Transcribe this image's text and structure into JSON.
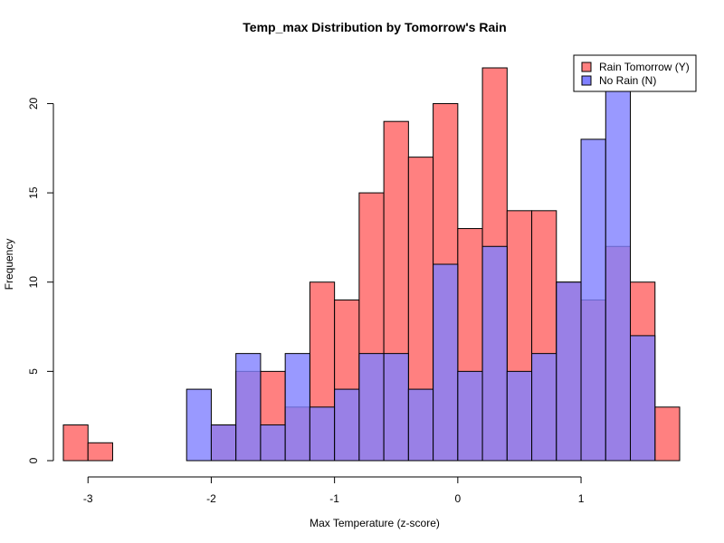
{
  "chart_data": {
    "type": "bar",
    "title": "Temp_max Distribution by Tomorrow's Rain",
    "xlabel": "Max Temperature (z-score)",
    "ylabel": "Frequency",
    "xlim": [
      -3.2,
      1.8
    ],
    "ylim": [
      0,
      22
    ],
    "xticks": [
      -3,
      -2,
      -1,
      0,
      1
    ],
    "yticks": [
      0,
      5,
      10,
      15,
      20
    ],
    "bin_width": 0.2,
    "legend_position": "top-right",
    "grid": false,
    "series": [
      {
        "name": "Rain Tomorrow (Y)",
        "color": "#FF8080",
        "bins": [
          {
            "x0": -3.2,
            "x1": -3.0,
            "count": 2
          },
          {
            "x0": -3.0,
            "x1": -2.8,
            "count": 1
          },
          {
            "x0": -2.0,
            "x1": -1.8,
            "count": 2
          },
          {
            "x0": -1.8,
            "x1": -1.6,
            "count": 5
          },
          {
            "x0": -1.6,
            "x1": -1.4,
            "count": 5
          },
          {
            "x0": -1.4,
            "x1": -1.2,
            "count": 3
          },
          {
            "x0": -1.2,
            "x1": -1.0,
            "count": 10
          },
          {
            "x0": -1.0,
            "x1": -0.8,
            "count": 9
          },
          {
            "x0": -0.8,
            "x1": -0.6,
            "count": 15
          },
          {
            "x0": -0.6,
            "x1": -0.4,
            "count": 19
          },
          {
            "x0": -0.4,
            "x1": -0.2,
            "count": 17
          },
          {
            "x0": -0.2,
            "x1": 0.0,
            "count": 20
          },
          {
            "x0": 0.0,
            "x1": 0.2,
            "count": 13
          },
          {
            "x0": 0.2,
            "x1": 0.4,
            "count": 22
          },
          {
            "x0": 0.4,
            "x1": 0.6,
            "count": 14
          },
          {
            "x0": 0.6,
            "x1": 0.8,
            "count": 14
          },
          {
            "x0": 0.8,
            "x1": 1.0,
            "count": 10
          },
          {
            "x0": 1.0,
            "x1": 1.2,
            "count": 9
          },
          {
            "x0": 1.2,
            "x1": 1.4,
            "count": 12
          },
          {
            "x0": 1.4,
            "x1": 1.6,
            "count": 10
          },
          {
            "x0": 1.6,
            "x1": 1.8,
            "count": 3
          }
        ]
      },
      {
        "name": "No Rain (N)",
        "color": "#8080FF",
        "bins": [
          {
            "x0": -2.2,
            "x1": -2.0,
            "count": 4
          },
          {
            "x0": -2.0,
            "x1": -1.8,
            "count": 2
          },
          {
            "x0": -1.8,
            "x1": -1.6,
            "count": 6
          },
          {
            "x0": -1.6,
            "x1": -1.4,
            "count": 2
          },
          {
            "x0": -1.4,
            "x1": -1.2,
            "count": 6
          },
          {
            "x0": -1.2,
            "x1": -1.0,
            "count": 3
          },
          {
            "x0": -1.0,
            "x1": -0.8,
            "count": 4
          },
          {
            "x0": -0.8,
            "x1": -0.6,
            "count": 6
          },
          {
            "x0": -0.6,
            "x1": -0.4,
            "count": 6
          },
          {
            "x0": -0.4,
            "x1": -0.2,
            "count": 4
          },
          {
            "x0": -0.2,
            "x1": 0.0,
            "count": 11
          },
          {
            "x0": 0.0,
            "x1": 0.2,
            "count": 5
          },
          {
            "x0": 0.2,
            "x1": 0.4,
            "count": 12
          },
          {
            "x0": 0.4,
            "x1": 0.6,
            "count": 5
          },
          {
            "x0": 0.6,
            "x1": 0.8,
            "count": 6
          },
          {
            "x0": 0.8,
            "x1": 1.0,
            "count": 10
          },
          {
            "x0": 1.0,
            "x1": 1.2,
            "count": 18
          },
          {
            "x0": 1.2,
            "x1": 1.4,
            "count": 21
          },
          {
            "x0": 1.4,
            "x1": 1.6,
            "count": 7
          }
        ]
      }
    ]
  }
}
